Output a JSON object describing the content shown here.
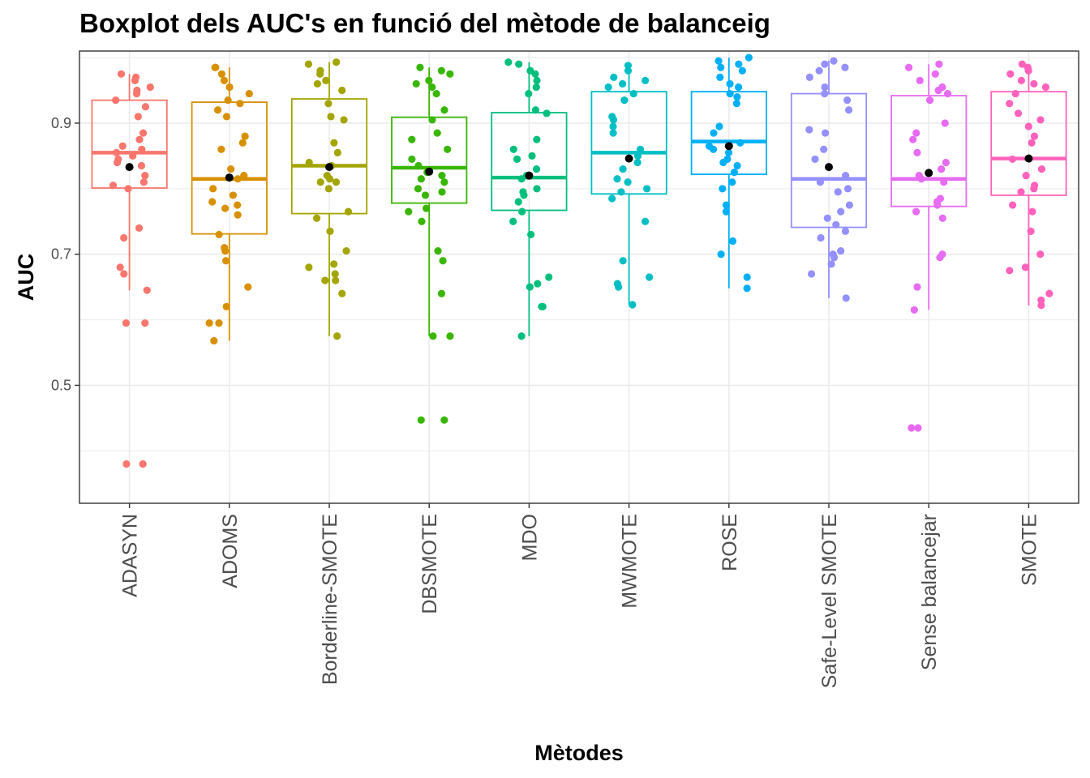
{
  "chart_data": {
    "type": "boxplot",
    "title": "Boxplot dels AUC's en funció del mètode de balanceig",
    "xlabel": "Mètodes",
    "ylabel": "AUC",
    "ylim": [
      0.32,
      1.01
    ],
    "y_ticks": [
      0.5,
      0.7,
      0.9
    ],
    "y_tick_labels": [
      "0.5",
      "0.7",
      "0.9"
    ],
    "grid": true,
    "legend": "none",
    "mean_marker_color": "#000000",
    "categories": [
      "ADASYN",
      "ADOMS",
      "Borderline-SMOTE",
      "DBSMOTE",
      "MDO",
      "MWMOTE",
      "ROSE",
      "Safe-Level SMOTE",
      "Sense balancejar",
      "SMOTE"
    ],
    "colors": [
      "#F8766D",
      "#D89000",
      "#A3A500",
      "#39B600",
      "#00BF7D",
      "#00BFC4",
      "#00B0F6",
      "#9590FF",
      "#E76BF3",
      "#FF62BC"
    ],
    "boxes": [
      {
        "name": "ADASYN",
        "lower_whisker": 0.645,
        "q1": 0.801,
        "median": 0.855,
        "q3": 0.935,
        "upper_whisker": 0.975,
        "mean": 0.833,
        "points": [
          0.97,
          0.975,
          0.965,
          0.955,
          0.95,
          0.945,
          0.935,
          0.925,
          0.91,
          0.885,
          0.875,
          0.865,
          0.86,
          0.855,
          0.85,
          0.845,
          0.84,
          0.835,
          0.82,
          0.81,
          0.805,
          0.8,
          0.74,
          0.725,
          0.68,
          0.67,
          0.645,
          0.595,
          0.595,
          0.38,
          0.38
        ]
      },
      {
        "name": "ADOMS",
        "lower_whisker": 0.568,
        "q1": 0.731,
        "median": 0.815,
        "q3": 0.932,
        "upper_whisker": 0.985,
        "mean": 0.817,
        "points": [
          0.985,
          0.985,
          0.975,
          0.965,
          0.955,
          0.945,
          0.935,
          0.93,
          0.92,
          0.91,
          0.88,
          0.87,
          0.86,
          0.83,
          0.82,
          0.815,
          0.8,
          0.79,
          0.78,
          0.775,
          0.77,
          0.76,
          0.73,
          0.71,
          0.705,
          0.69,
          0.65,
          0.62,
          0.595,
          0.595,
          0.568
        ]
      },
      {
        "name": "Borderline-SMOTE",
        "lower_whisker": 0.575,
        "q1": 0.762,
        "median": 0.835,
        "q3": 0.937,
        "upper_whisker": 0.993,
        "mean": 0.833,
        "points": [
          0.993,
          0.99,
          0.98,
          0.975,
          0.965,
          0.96,
          0.95,
          0.93,
          0.91,
          0.905,
          0.87,
          0.855,
          0.84,
          0.835,
          0.82,
          0.815,
          0.81,
          0.81,
          0.8,
          0.765,
          0.755,
          0.735,
          0.705,
          0.685,
          0.68,
          0.67,
          0.66,
          0.66,
          0.64,
          0.575
        ]
      },
      {
        "name": "DBSMOTE",
        "lower_whisker": 0.575,
        "q1": 0.778,
        "median": 0.832,
        "q3": 0.909,
        "upper_whisker": 0.985,
        "mean": 0.826,
        "points": [
          0.985,
          0.98,
          0.975,
          0.965,
          0.96,
          0.955,
          0.945,
          0.92,
          0.905,
          0.885,
          0.875,
          0.86,
          0.845,
          0.835,
          0.825,
          0.82,
          0.815,
          0.81,
          0.8,
          0.795,
          0.79,
          0.77,
          0.765,
          0.75,
          0.705,
          0.69,
          0.64,
          0.575,
          0.575,
          0.447,
          0.447
        ]
      },
      {
        "name": "MDO",
        "lower_whisker": 0.575,
        "q1": 0.767,
        "median": 0.817,
        "q3": 0.916,
        "upper_whisker": 0.993,
        "mean": 0.82,
        "points": [
          0.993,
          0.99,
          0.98,
          0.975,
          0.965,
          0.955,
          0.945,
          0.92,
          0.915,
          0.875,
          0.86,
          0.85,
          0.845,
          0.83,
          0.82,
          0.815,
          0.8,
          0.795,
          0.79,
          0.78,
          0.765,
          0.75,
          0.73,
          0.665,
          0.655,
          0.65,
          0.62,
          0.62,
          0.575
        ]
      },
      {
        "name": "MWMOTE",
        "lower_whisker": 0.623,
        "q1": 0.792,
        "median": 0.855,
        "q3": 0.948,
        "upper_whisker": 0.988,
        "mean": 0.846,
        "points": [
          0.988,
          0.98,
          0.97,
          0.965,
          0.96,
          0.955,
          0.945,
          0.935,
          0.91,
          0.905,
          0.895,
          0.885,
          0.86,
          0.85,
          0.84,
          0.83,
          0.815,
          0.81,
          0.8,
          0.795,
          0.785,
          0.75,
          0.69,
          0.665,
          0.655,
          0.65,
          0.623
        ]
      },
      {
        "name": "ROSE",
        "lower_whisker": 0.648,
        "q1": 0.822,
        "median": 0.872,
        "q3": 0.948,
        "upper_whisker": 1.0,
        "mean": 0.865,
        "points": [
          1.0,
          0.995,
          0.99,
          0.985,
          0.98,
          0.97,
          0.96,
          0.955,
          0.945,
          0.94,
          0.93,
          0.895,
          0.885,
          0.87,
          0.865,
          0.86,
          0.855,
          0.845,
          0.84,
          0.835,
          0.825,
          0.81,
          0.8,
          0.775,
          0.765,
          0.72,
          0.7,
          0.665,
          0.648
        ]
      },
      {
        "name": "Safe-Level SMOTE",
        "lower_whisker": 0.633,
        "q1": 0.741,
        "median": 0.815,
        "q3": 0.945,
        "upper_whisker": 0.995,
        "mean": 0.833,
        "points": [
          0.995,
          0.99,
          0.985,
          0.98,
          0.97,
          0.955,
          0.945,
          0.935,
          0.92,
          0.89,
          0.885,
          0.86,
          0.845,
          0.82,
          0.81,
          0.8,
          0.795,
          0.775,
          0.765,
          0.755,
          0.745,
          0.735,
          0.725,
          0.705,
          0.7,
          0.695,
          0.685,
          0.67,
          0.633
        ]
      },
      {
        "name": "Sense balancejar",
        "lower_whisker": 0.615,
        "q1": 0.773,
        "median": 0.815,
        "q3": 0.942,
        "upper_whisker": 0.99,
        "mean": 0.824,
        "points": [
          0.99,
          0.985,
          0.975,
          0.965,
          0.955,
          0.95,
          0.945,
          0.935,
          0.9,
          0.885,
          0.875,
          0.855,
          0.84,
          0.83,
          0.82,
          0.815,
          0.81,
          0.785,
          0.78,
          0.775,
          0.765,
          0.755,
          0.7,
          0.695,
          0.65,
          0.615,
          0.435,
          0.435
        ]
      },
      {
        "name": "SMOTE",
        "lower_whisker": 0.622,
        "q1": 0.79,
        "median": 0.846,
        "q3": 0.948,
        "upper_whisker": 0.99,
        "mean": 0.846,
        "points": [
          0.99,
          0.985,
          0.98,
          0.975,
          0.965,
          0.96,
          0.955,
          0.945,
          0.93,
          0.915,
          0.905,
          0.895,
          0.88,
          0.87,
          0.845,
          0.83,
          0.82,
          0.805,
          0.8,
          0.795,
          0.775,
          0.765,
          0.735,
          0.7,
          0.68,
          0.675,
          0.64,
          0.63,
          0.622
        ]
      }
    ]
  }
}
